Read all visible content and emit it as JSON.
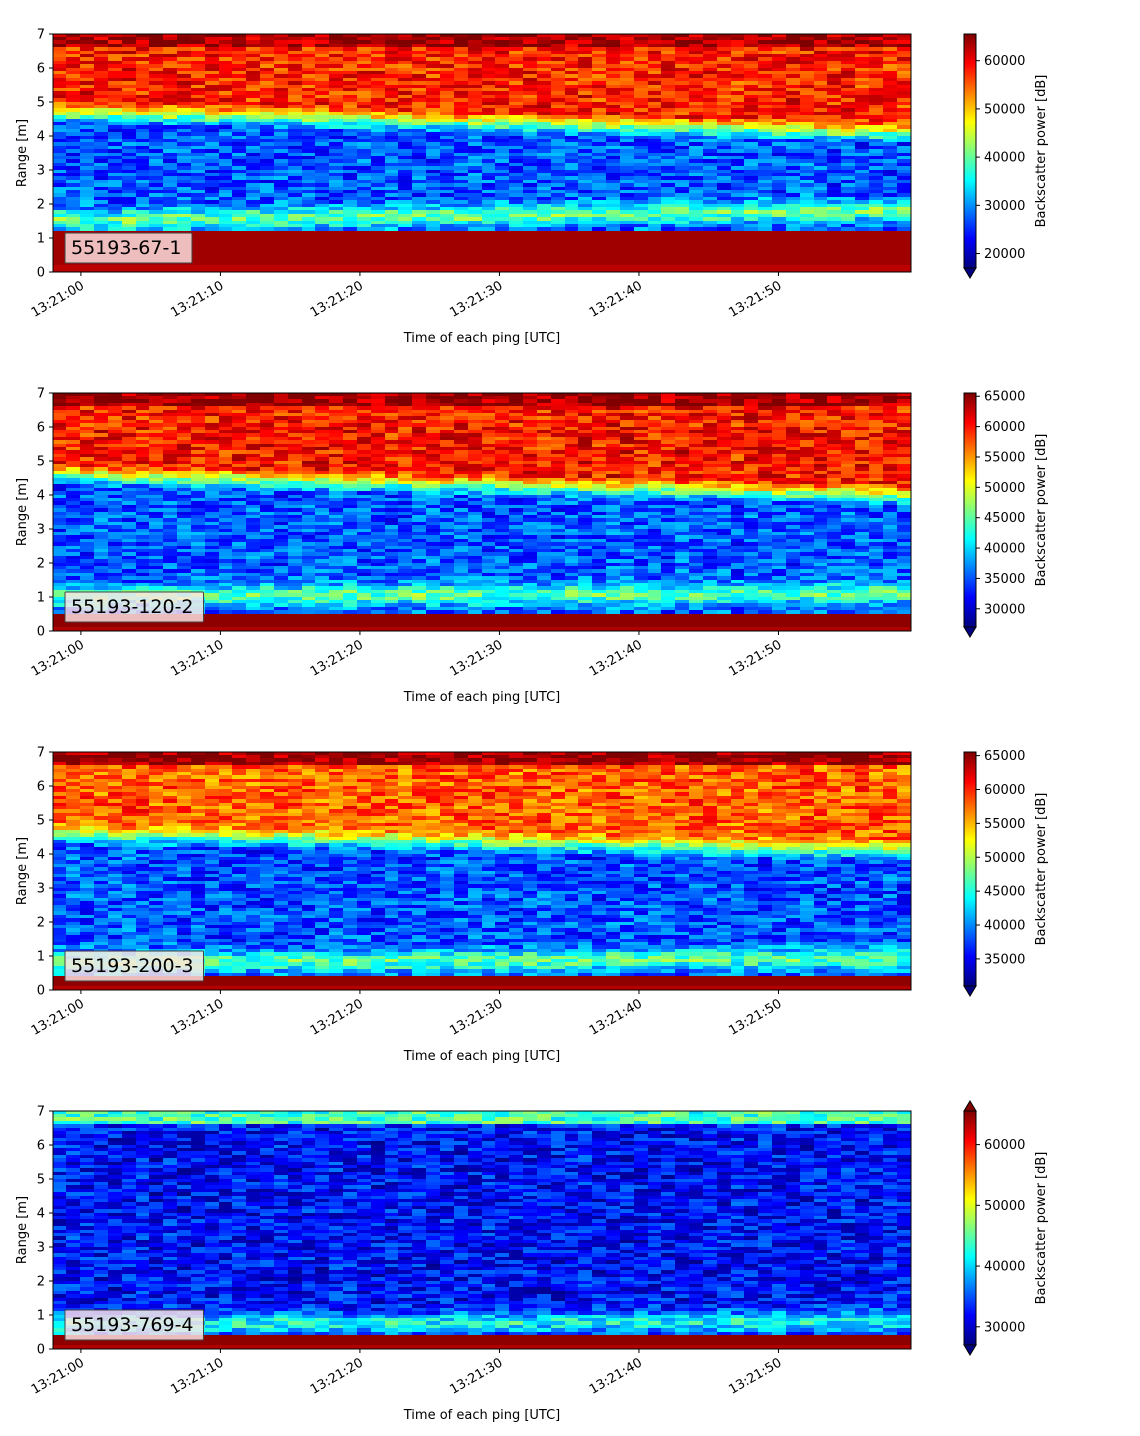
{
  "chart_data": [
    {
      "type": "heatmap",
      "label": "55193-67-1",
      "xlabel": "Time of each ping [UTC]",
      "ylabel": "Range [m]",
      "x_ticks": [
        "13:21:00",
        "13:21:10",
        "13:21:20",
        "13:21:30",
        "13:21:40",
        "13:21:50"
      ],
      "x_range": [
        "13:20:58",
        "13:21:59.5"
      ],
      "y_ticks": [
        0,
        1,
        2,
        3,
        4,
        5,
        6,
        7
      ],
      "ylim": [
        0,
        7
      ],
      "colormap": "jet",
      "colorbar_label": "Backscatter power [dB]",
      "colorbar_ticks": [
        20000,
        30000,
        40000,
        50000,
        60000
      ],
      "color_range": [
        17000,
        65535
      ],
      "colorbar_extend": "min",
      "profile": {
        "near_band": {
          "from": 0.2,
          "to": 1.2,
          "level": 64000
        },
        "mid_band": {
          "center_start": 1.5,
          "center_end": 1.8,
          "level": 40000
        },
        "low_region_level": 27000,
        "transition_start": 4.5,
        "transition_end": 3.9,
        "upper_level": 58000,
        "top_level": 64000
      }
    },
    {
      "type": "heatmap",
      "label": "55193-120-2",
      "xlabel": "Time of each ping [UTC]",
      "ylabel": "Range [m]",
      "x_ticks": [
        "13:21:00",
        "13:21:10",
        "13:21:20",
        "13:21:30",
        "13:21:40",
        "13:21:50"
      ],
      "x_range": [
        "13:20:58",
        "13:21:59.5"
      ],
      "y_ticks": [
        0,
        1,
        2,
        3,
        4,
        5,
        6,
        7
      ],
      "ylim": [
        0,
        7
      ],
      "colormap": "jet",
      "colorbar_label": "Backscatter power [dB]",
      "colorbar_ticks": [
        30000,
        35000,
        40000,
        45000,
        50000,
        55000,
        60000,
        65000
      ],
      "color_range": [
        27000,
        65535
      ],
      "colorbar_extend": "min",
      "profile": {
        "near_band": {
          "from": 0.1,
          "to": 0.5,
          "level": 65000
        },
        "mid_band": {
          "center_start": 1.0,
          "center_end": 1.1,
          "level": 45000
        },
        "low_region_level": 35000,
        "transition_start": 4.4,
        "transition_end": 3.8,
        "upper_level": 60000,
        "top_level": 65000
      }
    },
    {
      "type": "heatmap",
      "label": "55193-200-3",
      "xlabel": "Time of each ping [UTC]",
      "ylabel": "Range [m]",
      "x_ticks": [
        "13:21:00",
        "13:21:10",
        "13:21:20",
        "13:21:30",
        "13:21:40",
        "13:21:50"
      ],
      "x_range": [
        "13:20:58",
        "13:21:59.5"
      ],
      "y_ticks": [
        0,
        1,
        2,
        3,
        4,
        5,
        6,
        7
      ],
      "ylim": [
        0,
        7
      ],
      "colormap": "jet",
      "colorbar_label": "Backscatter power [dB]",
      "colorbar_ticks": [
        35000,
        40000,
        45000,
        50000,
        55000,
        60000,
        65000
      ],
      "color_range": [
        31000,
        65535
      ],
      "colorbar_extend": "min",
      "profile": {
        "near_band": {
          "from": 0.1,
          "to": 0.45,
          "level": 65000
        },
        "mid_band": {
          "center_start": 0.8,
          "center_end": 0.9,
          "level": 47000
        },
        "low_region_level": 38000,
        "transition_start": 4.4,
        "transition_end": 3.9,
        "upper_level": 58000,
        "top_level": 65000
      }
    },
    {
      "type": "heatmap",
      "label": "55193-769-4",
      "xlabel": "Time of each ping [UTC]",
      "ylabel": "Range [m]",
      "x_ticks": [
        "13:21:00",
        "13:21:10",
        "13:21:20",
        "13:21:30",
        "13:21:40",
        "13:21:50"
      ],
      "x_range": [
        "13:20:58",
        "13:21:59.5"
      ],
      "y_ticks": [
        0,
        1,
        2,
        3,
        4,
        5,
        6,
        7
      ],
      "ylim": [
        0,
        7
      ],
      "colormap": "jet",
      "colorbar_label": "Backscatter power [dB]",
      "colorbar_ticks": [
        30000,
        40000,
        50000,
        60000
      ],
      "color_range": [
        27000,
        65535
      ],
      "colorbar_extend": "both",
      "profile": {
        "near_band": {
          "from": 0.1,
          "to": 0.35,
          "level": 65000
        },
        "mid_band": {
          "center_start": 0.7,
          "center_end": 0.8,
          "level": 42000
        },
        "low_region_level": 32000,
        "transition_start": 6.6,
        "transition_end": 6.6,
        "upper_level": 38000,
        "top_level": 44000
      }
    }
  ]
}
